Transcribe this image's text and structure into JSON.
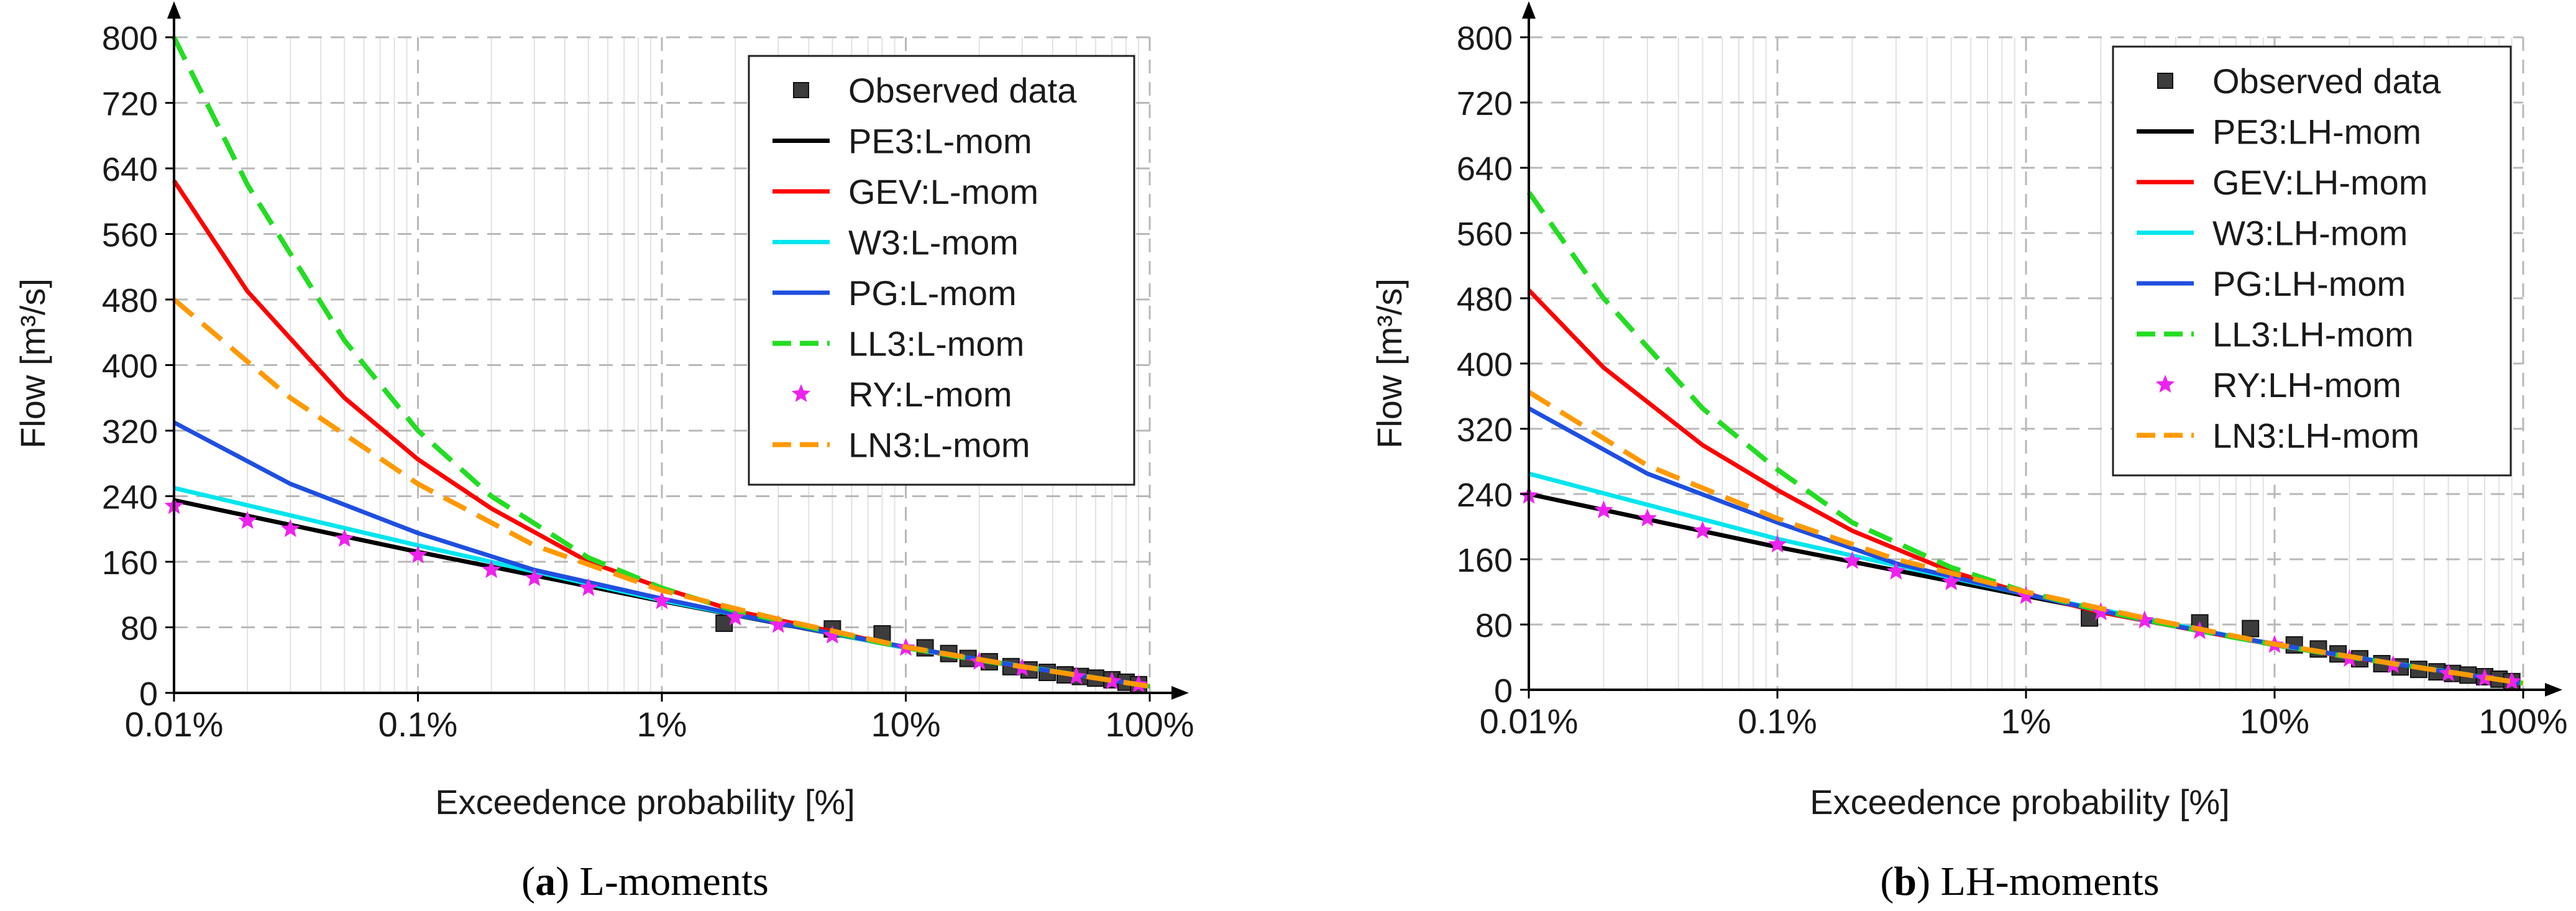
{
  "colors": {
    "PE3": "#000000",
    "GEV": "#ff0000",
    "W3": "#00e5ee",
    "PG": "#1f4fe0",
    "LL3": "#22dd22",
    "RY": "#ee22ee",
    "LN3": "#ff9900",
    "observed": "#3c3c3c"
  },
  "chart_data": [
    {
      "type": "line",
      "caption_label": "a",
      "caption_text": "L-moments",
      "xlabel": "Exceedence probability [%]",
      "ylabel": "Flow [m³/s]",
      "x_scale": "log",
      "xlim": [
        0.01,
        100
      ],
      "ylim": [
        0,
        800
      ],
      "x_ticks": [
        0.01,
        0.1,
        1,
        10,
        100
      ],
      "x_tick_labels": [
        "0.01%",
        "0.1%",
        "1%",
        "10%",
        "100%"
      ],
      "y_ticks": [
        0,
        80,
        160,
        240,
        320,
        400,
        480,
        560,
        640,
        720,
        800
      ],
      "y_tick_labels": [
        "0",
        "80",
        "160",
        "240",
        "320",
        "400",
        "480",
        "560",
        "640",
        "720",
        "800"
      ],
      "grid": true,
      "legend_position": "top-right",
      "legend_observed": "Observed data",
      "observed": {
        "x": [
          1.8,
          5,
          8,
          12,
          15,
          18,
          22,
          27,
          32,
          38,
          45,
          52,
          60,
          70,
          80,
          90
        ],
        "y": [
          85,
          78,
          72,
          55,
          48,
          42,
          38,
          32,
          28,
          25,
          22,
          20,
          18,
          16,
          13,
          10
        ]
      },
      "series": [
        {
          "key": "PE3",
          "name": "PE3:L-mom",
          "style": "solid",
          "x": [
            0.01,
            0.1,
            1,
            10,
            100
          ],
          "y": [
            235,
            172,
            112,
            55,
            8
          ]
        },
        {
          "key": "GEV",
          "name": "GEV:L-mom",
          "style": "solid",
          "x": [
            0.01,
            0.02,
            0.05,
            0.1,
            0.2,
            0.5,
            1,
            2,
            5,
            10,
            20,
            50,
            100
          ],
          "y": [
            625,
            490,
            360,
            285,
            225,
            160,
            128,
            100,
            75,
            55,
            40,
            22,
            8
          ]
        },
        {
          "key": "W3",
          "name": "W3:L-mom",
          "style": "solid",
          "x": [
            0.01,
            0.1,
            1,
            10,
            100
          ],
          "y": [
            250,
            180,
            113,
            55,
            8
          ]
        },
        {
          "key": "PG",
          "name": "PG:L-mom",
          "style": "solid",
          "x": [
            0.01,
            0.03,
            0.1,
            0.3,
            1,
            3,
            10,
            30,
            100
          ],
          "y": [
            330,
            255,
            195,
            150,
            115,
            85,
            56,
            32,
            8
          ]
        },
        {
          "key": "LL3",
          "name": "LL3:L-mom",
          "style": "dash",
          "x": [
            0.01,
            0.02,
            0.05,
            0.1,
            0.2,
            0.5,
            1,
            2,
            5,
            10,
            20,
            50,
            100
          ],
          "y": [
            800,
            620,
            430,
            320,
            240,
            165,
            128,
            100,
            74,
            55,
            40,
            22,
            8
          ]
        },
        {
          "key": "RY",
          "name": "RY:L-mom",
          "style": "stars",
          "x": [
            0.01,
            0.02,
            0.03,
            0.05,
            0.1,
            0.2,
            0.3,
            0.5,
            1,
            2,
            3,
            5,
            10,
            20,
            30,
            50,
            70,
            90
          ],
          "y": [
            228,
            210,
            200,
            188,
            168,
            150,
            140,
            128,
            112,
            92,
            83,
            70,
            55,
            38,
            30,
            20,
            14,
            10
          ]
        },
        {
          "key": "LN3",
          "name": "LN3:L-mom",
          "style": "dash",
          "x": [
            0.01,
            0.03,
            0.1,
            0.3,
            1,
            3,
            10,
            30,
            100
          ],
          "y": [
            480,
            360,
            255,
            180,
            125,
            90,
            56,
            32,
            8
          ]
        }
      ]
    },
    {
      "type": "line",
      "caption_label": "b",
      "caption_text": "LH-moments",
      "xlabel": "Exceedence probability [%]",
      "ylabel": "Flow [m³/s]",
      "x_scale": "log",
      "xlim": [
        0.01,
        100
      ],
      "ylim": [
        0,
        800
      ],
      "x_ticks": [
        0.01,
        0.1,
        1,
        10,
        100
      ],
      "x_tick_labels": [
        "0.01%",
        "0.1%",
        "1%",
        "10%",
        "100%"
      ],
      "y_ticks": [
        0,
        80,
        160,
        240,
        320,
        400,
        480,
        560,
        640,
        720,
        800
      ],
      "y_tick_labels": [
        "0",
        "80",
        "160",
        "240",
        "320",
        "400",
        "480",
        "560",
        "640",
        "720",
        "800"
      ],
      "grid": true,
      "legend_position": "top-right",
      "legend_observed": "Observed data",
      "observed": {
        "x": [
          1.8,
          5,
          8,
          12,
          15,
          18,
          22,
          27,
          32,
          38,
          45,
          52,
          60,
          70,
          80,
          90
        ],
        "y": [
          88,
          82,
          75,
          55,
          50,
          44,
          38,
          32,
          28,
          25,
          22,
          20,
          18,
          16,
          13,
          10
        ]
      },
      "series": [
        {
          "key": "PE3",
          "name": "PE3:LH-mom",
          "style": "solid",
          "x": [
            0.01,
            0.1,
            1,
            10,
            100
          ],
          "y": [
            240,
            175,
            115,
            55,
            8
          ]
        },
        {
          "key": "GEV",
          "name": "GEV:LH-mom",
          "style": "solid",
          "x": [
            0.01,
            0.02,
            0.05,
            0.1,
            0.2,
            0.5,
            1,
            2,
            5,
            10,
            20,
            50,
            100
          ],
          "y": [
            490,
            395,
            300,
            245,
            195,
            145,
            118,
            95,
            72,
            55,
            40,
            22,
            8
          ]
        },
        {
          "key": "W3",
          "name": "W3:LH-mom",
          "style": "solid",
          "x": [
            0.01,
            0.1,
            1,
            10,
            100
          ],
          "y": [
            265,
            185,
            117,
            55,
            8
          ]
        },
        {
          "key": "PG",
          "name": "PG:LH-mom",
          "style": "solid",
          "x": [
            0.01,
            0.03,
            0.1,
            0.3,
            1,
            3,
            10,
            30,
            100
          ],
          "y": [
            345,
            265,
            205,
            155,
            117,
            85,
            56,
            32,
            8
          ]
        },
        {
          "key": "LL3",
          "name": "LL3:LH-mom",
          "style": "dash",
          "x": [
            0.01,
            0.02,
            0.05,
            0.1,
            0.2,
            0.5,
            1,
            2,
            5,
            10,
            20,
            50,
            100
          ],
          "y": [
            610,
            480,
            345,
            270,
            205,
            150,
            120,
            97,
            72,
            55,
            40,
            22,
            8
          ]
        },
        {
          "key": "RY",
          "name": "RY:LH-mom",
          "style": "stars",
          "x": [
            0.01,
            0.02,
            0.03,
            0.05,
            0.1,
            0.2,
            0.3,
            0.5,
            1,
            2,
            3,
            5,
            10,
            20,
            30,
            50,
            70,
            90
          ],
          "y": [
            238,
            220,
            210,
            195,
            178,
            158,
            145,
            132,
            115,
            95,
            85,
            72,
            55,
            38,
            30,
            20,
            14,
            10
          ]
        },
        {
          "key": "LN3",
          "name": "LN3:LH-mom",
          "style": "dash",
          "x": [
            0.01,
            0.03,
            0.1,
            0.3,
            1,
            3,
            10,
            30,
            100
          ],
          "y": [
            365,
            275,
            210,
            160,
            120,
            88,
            56,
            32,
            8
          ]
        }
      ]
    }
  ]
}
